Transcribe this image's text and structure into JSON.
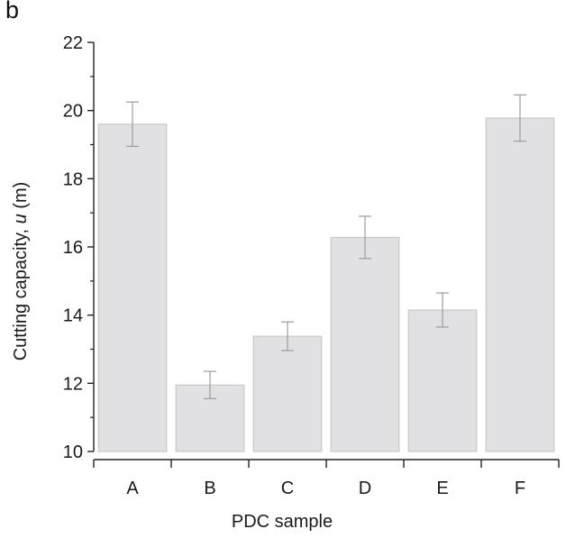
{
  "panel_label": "b",
  "chart_data": {
    "type": "bar",
    "categories": [
      "A",
      "B",
      "C",
      "D",
      "E",
      "F"
    ],
    "values": [
      19.6,
      11.95,
      13.38,
      16.28,
      14.15,
      19.78
    ],
    "errors": [
      0.65,
      0.4,
      0.42,
      0.62,
      0.5,
      0.68
    ],
    "xlabel": "PDC sample",
    "ylabel_prefix": "Cutting capacity, ",
    "ylabel_var": "u",
    "ylabel_suffix": " (m)",
    "ylim": [
      10,
      22
    ],
    "yticks": [
      10,
      12,
      14,
      16,
      18,
      20,
      22
    ],
    "grid": false,
    "colors": {
      "bar_fill": "#e1e1e3",
      "bar_stroke": "#c2c2c4",
      "error_bar": "#9c9c9c",
      "axis": "#222222"
    }
  }
}
